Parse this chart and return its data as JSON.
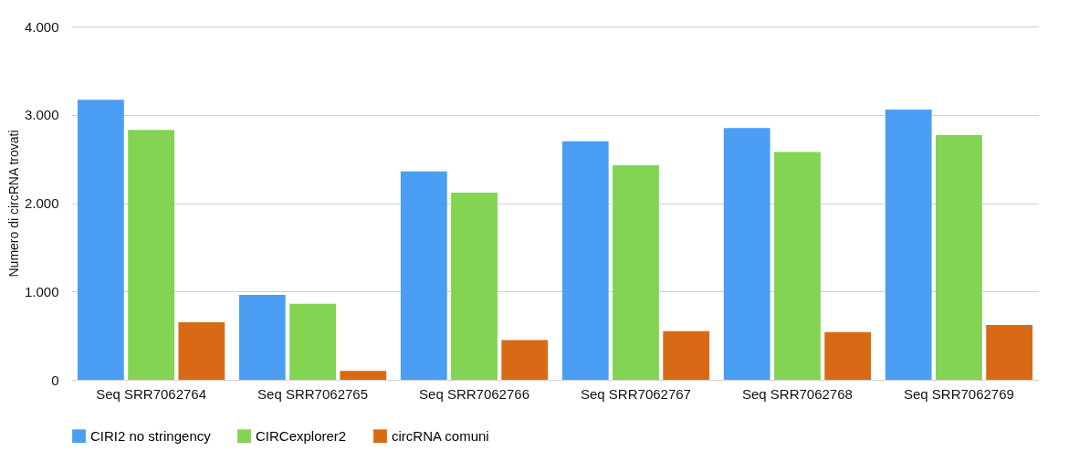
{
  "chart_data": {
    "type": "bar",
    "ylabel": "Numero di circRNA trovati",
    "categories": [
      "Seq SRR7062764",
      "Seq SRR7062765",
      "Seq SRR7062766",
      "Seq SRR7062767",
      "Seq SRR7062768",
      "Seq SRR7062769"
    ],
    "series": [
      {
        "name": "CIRI2 no stringency",
        "color": "#4a9ff5",
        "values": [
          3170,
          960,
          2360,
          2700,
          2850,
          3060
        ]
      },
      {
        "name": "CIRCexplorer2",
        "color": "#82d452",
        "values": [
          2830,
          860,
          2120,
          2430,
          2580,
          2770
        ]
      },
      {
        "name": "circRNA comuni",
        "color": "#d96a15",
        "values": [
          650,
          100,
          450,
          550,
          540,
          620
        ]
      }
    ],
    "ylim": [
      0,
      4000
    ],
    "yticks": [
      {
        "value": 0,
        "label": "0"
      },
      {
        "value": 1000,
        "label": "1.000"
      },
      {
        "value": 2000,
        "label": "2.000"
      },
      {
        "value": 3000,
        "label": "3.000"
      },
      {
        "value": 4000,
        "label": "4.000"
      }
    ],
    "grid": "y",
    "legend": "bottom"
  }
}
